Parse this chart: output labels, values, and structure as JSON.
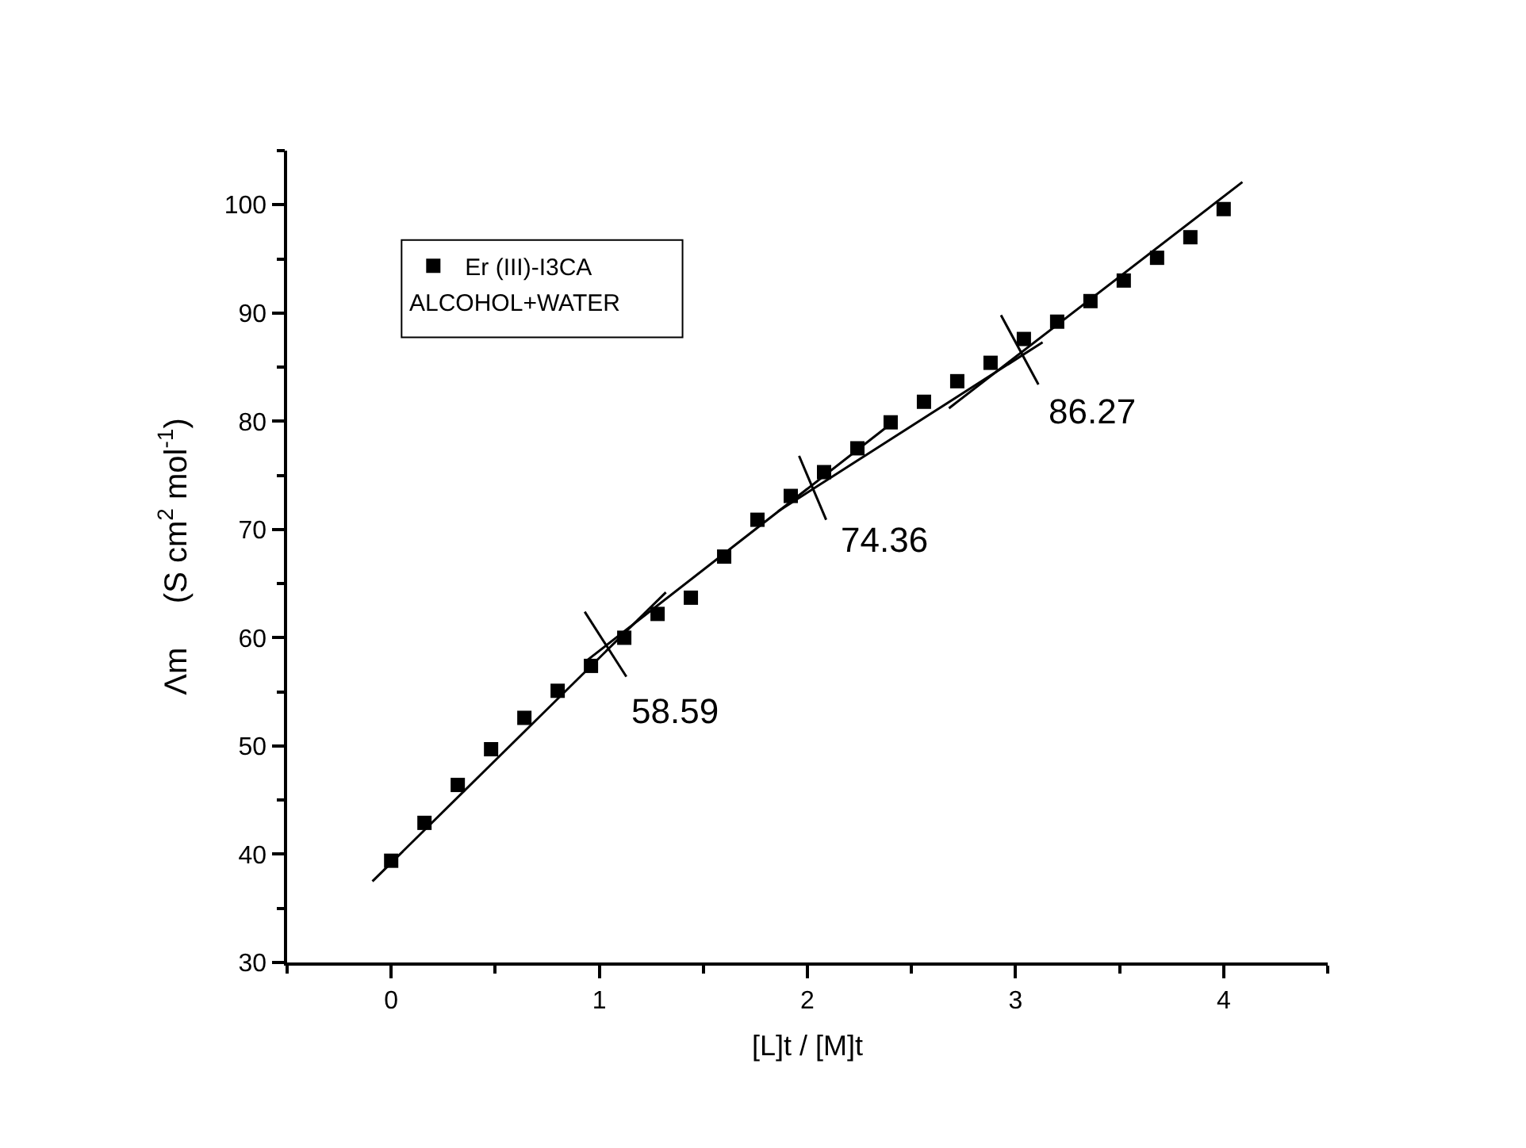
{
  "chart_data": {
    "type": "scatter",
    "xlabel": "[L]t / [M]t",
    "ylabel": "Λm     (S cm$^{2}$ mol$^{-1}$)",
    "xlim": [
      -0.5,
      4.5
    ],
    "ylim": [
      30,
      105
    ],
    "xticks": [
      0,
      1,
      2,
      3,
      4
    ],
    "yticks": [
      30,
      40,
      50,
      60,
      70,
      80,
      90,
      100
    ],
    "grid": false,
    "legend": "top left",
    "marker": "square",
    "series": [
      {
        "name": "Er (III)-I3CA",
        "color": "#000000",
        "x": [
          0,
          0.16,
          0.32,
          0.48,
          0.64,
          0.8,
          0.96,
          1.12,
          1.28,
          1.44,
          1.6,
          1.76,
          1.92,
          2.08,
          2.24,
          2.4,
          2.56,
          2.72,
          2.88,
          3.04,
          3.2,
          3.36,
          3.52,
          3.68,
          3.84,
          4.0
        ],
        "values": [
          39.4,
          42.9,
          46.4,
          49.7,
          52.6,
          55.1,
          57.4,
          60.0,
          62.2,
          63.7,
          67.5,
          70.9,
          73.1,
          75.3,
          77.5,
          79.9,
          81.8,
          83.7,
          85.4,
          87.6,
          89.2,
          91.1,
          93.0,
          95.1,
          97.0,
          99.6
        ]
      },
      {
        "type": "line",
        "color": "#000000",
        "marker": "none",
        "x": [
          -0.09,
          1.32
        ],
        "values": [
          37.5,
          64.2
        ]
      },
      {
        "type": "line",
        "color": "#000000",
        "marker": "none",
        "x": [
          0.94,
          2.39
        ],
        "values": [
          57.9,
          79.6
        ]
      },
      {
        "type": "line",
        "color": "#000000",
        "marker": "none",
        "x": [
          1.86,
          3.13
        ],
        "values": [
          71.7,
          87.3
        ]
      },
      {
        "type": "line",
        "color": "#000000",
        "marker": "none",
        "x": [
          2.68,
          4.09
        ],
        "values": [
          81.2,
          102.1
        ]
      },
      {
        "type": "line",
        "color": "#000000",
        "marker": "none",
        "x": [
          0.93,
          1.13
        ],
        "values": [
          62.4,
          56.4
        ]
      },
      {
        "type": "line",
        "color": "#000000",
        "marker": "none",
        "x": [
          1.96,
          2.09
        ],
        "values": [
          76.8,
          70.9
        ]
      },
      {
        "type": "line",
        "color": "#000000",
        "marker": "none",
        "x": [
          2.93,
          3.11
        ],
        "values": [
          89.8,
          83.4
        ]
      }
    ],
    "annotations": [
      {
        "text": "58.59",
        "x": 1.02,
        "y": 58.59
      },
      {
        "text": "74.36",
        "x": 2.02,
        "y": 74.36
      },
      {
        "text": "86.27",
        "x": 3.02,
        "y": 86.27
      },
      "ALCOHOL+WATER"
    ]
  }
}
